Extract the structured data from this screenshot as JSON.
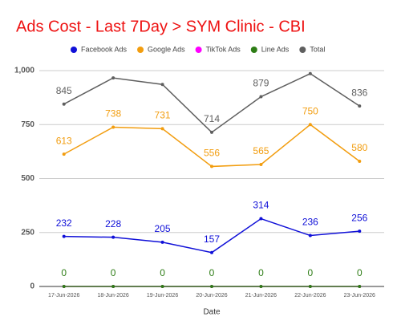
{
  "chart_data": {
    "type": "line",
    "title": "Ads Cost - Last 7Day > SYM Clinic - CBI",
    "x_label": "Date",
    "categories": [
      "17-Jun-2026",
      "18-Jun-2026",
      "19-Jun-2026",
      "20-Jun-2026",
      "21-Jun-2026",
      "22-Jun-2026",
      "23-Jun-2026"
    ],
    "series": [
      {
        "name": "Facebook Ads",
        "color": "#1010d8",
        "values": [
          232,
          228,
          205,
          157,
          314,
          236,
          256
        ],
        "value_labels": [
          "232",
          "228",
          "205",
          "157",
          "314",
          "236",
          "256"
        ]
      },
      {
        "name": "Google Ads",
        "color": "#f29d0f",
        "values": [
          613,
          738,
          731,
          556,
          565,
          750,
          580
        ],
        "value_labels": [
          "613",
          "738",
          "731",
          "556",
          "565",
          "750",
          "580"
        ]
      },
      {
        "name": "TikTok Ads",
        "color": "#ff00ff",
        "values": [
          0,
          0,
          0,
          0,
          0,
          0,
          0
        ]
      },
      {
        "name": "Line Ads",
        "color": "#2e7d16",
        "values": [
          0,
          0,
          0,
          0,
          0,
          0,
          0
        ],
        "value_labels": [
          "0",
          "0",
          "0",
          "0",
          "0",
          "0",
          "0"
        ]
      },
      {
        "name": "Total",
        "color": "#5f5f5f",
        "values": [
          845,
          966,
          936,
          714,
          879,
          986,
          836
        ],
        "value_labels": [
          "845",
          null,
          null,
          "714",
          "879",
          null,
          "836"
        ]
      }
    ],
    "ylim": [
      0,
      1000
    ],
    "yticks": [
      0,
      250,
      500,
      750,
      {
        "value": 1000,
        "label": "1,000"
      }
    ],
    "grid": true,
    "legend": "top"
  }
}
